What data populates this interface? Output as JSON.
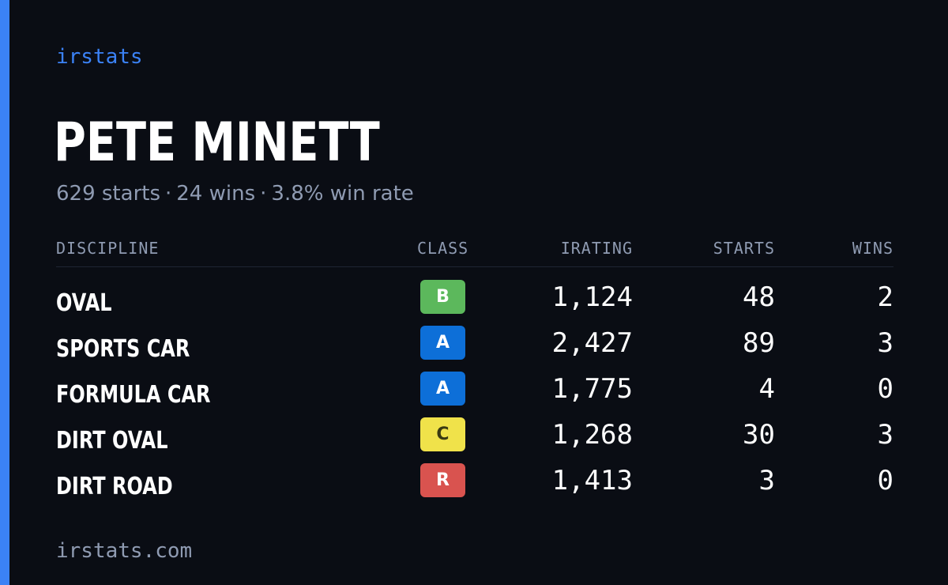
{
  "brand": "irstats",
  "driver": {
    "name": "PETE MINETT",
    "starts_summary": "629 starts",
    "wins_summary": "24 wins",
    "winrate_summary": "3.8% win rate",
    "separator": "·"
  },
  "table": {
    "headers": {
      "discipline": "DISCIPLINE",
      "class": "CLASS",
      "irating": "IRATING",
      "starts": "STARTS",
      "wins": "WINS"
    },
    "rows": [
      {
        "discipline": "OVAL",
        "class": "B",
        "class_color": "#5cb85c",
        "class_text_color": "#ffffff",
        "irating": "1,124",
        "starts": "48",
        "wins": "2"
      },
      {
        "discipline": "SPORTS CAR",
        "class": "A",
        "class_color": "#0d6fd8",
        "class_text_color": "#ffffff",
        "irating": "2,427",
        "starts": "89",
        "wins": "3"
      },
      {
        "discipline": "FORMULA CAR",
        "class": "A",
        "class_color": "#0d6fd8",
        "class_text_color": "#ffffff",
        "irating": "1,775",
        "starts": "4",
        "wins": "0"
      },
      {
        "discipline": "DIRT OVAL",
        "class": "C",
        "class_color": "#f0e24a",
        "class_text_color": "#3a3a12",
        "irating": "1,268",
        "starts": "30",
        "wins": "3"
      },
      {
        "discipline": "DIRT ROAD",
        "class": "R",
        "class_color": "#d9534f",
        "class_text_color": "#ffffff",
        "irating": "1,413",
        "starts": "3",
        "wins": "0"
      }
    ]
  },
  "footer": "irstats.com",
  "colors": {
    "accent": "#3b82f6",
    "background": "#0a0d14",
    "muted_text": "#8f9bb2"
  }
}
